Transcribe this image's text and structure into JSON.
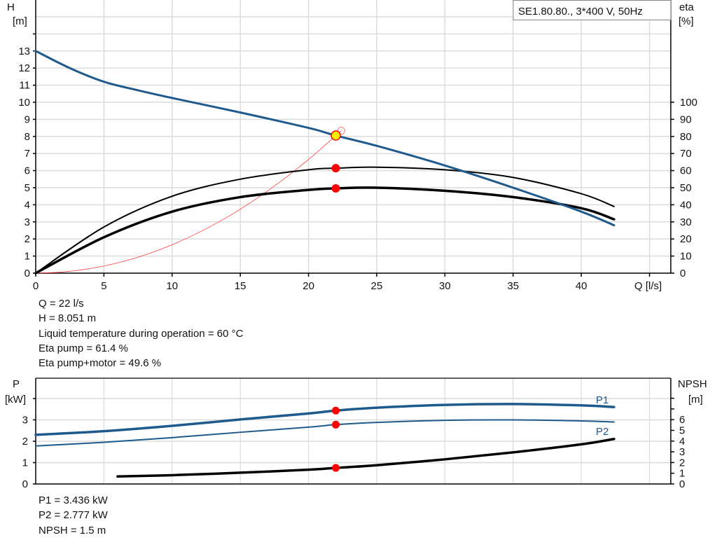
{
  "chart_data": [
    {
      "type": "line",
      "title": "SE1.80.80., 3*400 V, 50Hz",
      "xlabel": "Q [l/s]",
      "ylabel": [
        "H",
        "[m]"
      ],
      "y2label": [
        "eta",
        "[%]"
      ],
      "xlim": [
        0,
        47.5
      ],
      "ylim": [
        0,
        16
      ],
      "y2lim": [
        0,
        160
      ],
      "x_ticks": [
        0,
        5,
        10,
        15,
        20,
        25,
        30,
        35,
        40
      ],
      "y_ticks": [
        0,
        1,
        2,
        3,
        4,
        5,
        6,
        7,
        8,
        9,
        10,
        11,
        12,
        13
      ],
      "y2_ticks": [
        0,
        10,
        20,
        30,
        40,
        50,
        60,
        70,
        80,
        90,
        100
      ],
      "grid": true,
      "series": [
        {
          "id": "head",
          "axis": "y",
          "color": "#1f5a8c",
          "width": 3,
          "x": [
            0,
            2.5,
            5,
            7.5,
            10,
            15,
            20,
            22,
            25,
            30,
            35,
            40,
            42.4
          ],
          "y": [
            13,
            12,
            11.2,
            10.7,
            10.25,
            9.4,
            8.5,
            8.05,
            7.45,
            6.3,
            5.0,
            3.6,
            2.8
          ]
        },
        {
          "id": "eta-pump",
          "axis": "y2",
          "color": "#000000",
          "width": 2,
          "x": [
            0,
            5,
            10,
            15,
            20,
            22,
            25,
            30,
            35,
            40,
            42.4
          ],
          "y": [
            0,
            27,
            45,
            55,
            60.5,
            61.4,
            62,
            60.5,
            56,
            46.5,
            39
          ]
        },
        {
          "id": "eta-pump-motor",
          "axis": "y2",
          "color": "#000000",
          "width": 3.5,
          "x": [
            0,
            5,
            10,
            15,
            20,
            22,
            25,
            30,
            35,
            40,
            42.4
          ],
          "y": [
            0,
            21,
            36,
            44.5,
            48.7,
            49.6,
            50,
            48.2,
            44.5,
            38,
            31.5
          ]
        },
        {
          "id": "system-curve",
          "axis": "y",
          "color": "#ff4040",
          "width": 0.8,
          "x": [
            0,
            2,
            4,
            6,
            8,
            10,
            12,
            14,
            16,
            18,
            20,
            22,
            22.4
          ],
          "y": [
            0,
            0.07,
            0.27,
            0.6,
            1.06,
            1.66,
            2.4,
            3.26,
            4.26,
            5.39,
            6.65,
            8.05,
            8.34
          ]
        }
      ],
      "markers": [
        {
          "x": 22,
          "y": 8.051,
          "axis": "y",
          "fill": "#ffee00",
          "stroke": "#ff0000"
        },
        {
          "x": 22,
          "y": 61.4,
          "axis": "y2",
          "fill": "#ff0000"
        },
        {
          "x": 22,
          "y": 49.6,
          "axis": "y2",
          "fill": "#ff0000"
        }
      ]
    },
    {
      "type": "line",
      "ylabel": [
        "P",
        "[kW]"
      ],
      "y2label": [
        "NPSH",
        "[m]"
      ],
      "xlim": [
        0,
        47.5
      ],
      "ylim": [
        0,
        5
      ],
      "y2lim": [
        0,
        10
      ],
      "y_ticks": [
        0,
        1,
        2,
        3,
        4
      ],
      "y_tick_labels": [
        "0",
        "1",
        "2",
        "3",
        ""
      ],
      "y2_ticks": [
        0,
        1,
        2,
        3,
        4,
        5,
        6,
        7,
        8
      ],
      "y2_tick_labels": [
        "0",
        "1",
        "2",
        "3",
        "4",
        "5",
        "6",
        "",
        ""
      ],
      "grid": true,
      "series": [
        {
          "id": "p1",
          "name": "P1",
          "axis": "y",
          "color": "#1f5a8c",
          "width": 3.5,
          "x": [
            0,
            5,
            10,
            15,
            20,
            22,
            25,
            30,
            35,
            40,
            42.4
          ],
          "y": [
            2.3,
            2.47,
            2.72,
            3.02,
            3.3,
            3.436,
            3.57,
            3.7,
            3.74,
            3.68,
            3.6
          ]
        },
        {
          "id": "p2",
          "name": "P2",
          "axis": "y",
          "color": "#1f5a8c",
          "width": 2,
          "x": [
            0,
            5,
            10,
            15,
            20,
            22,
            25,
            30,
            35,
            40,
            42.4
          ],
          "y": [
            1.78,
            1.95,
            2.17,
            2.42,
            2.66,
            2.777,
            2.88,
            2.98,
            3.0,
            2.95,
            2.9
          ]
        },
        {
          "id": "npsh",
          "axis": "y2",
          "color": "#000000",
          "width": 3.5,
          "x": [
            6,
            10,
            15,
            20,
            22,
            25,
            30,
            35,
            40,
            42.4
          ],
          "y": [
            0.7,
            0.82,
            1.05,
            1.33,
            1.5,
            1.75,
            2.3,
            2.95,
            3.7,
            4.2
          ]
        }
      ],
      "markers": [
        {
          "x": 22,
          "y": 3.436,
          "axis": "y",
          "fill": "#ff0000"
        },
        {
          "x": 22,
          "y": 2.777,
          "axis": "y",
          "fill": "#ff0000"
        },
        {
          "x": 22,
          "y": 1.5,
          "axis": "y2",
          "fill": "#ff0000"
        }
      ]
    }
  ],
  "info_top": [
    "Q = 22 l/s",
    "H = 8.051 m",
    "Liquid temperature during operation = 60 °C",
    "Eta pump = 61.4 %",
    "Eta pump+motor = 49.6 %"
  ],
  "info_bottom": [
    "P1 = 3.436 kW",
    "P2 = 2.777 kW",
    "NPSH = 1.5 m"
  ]
}
